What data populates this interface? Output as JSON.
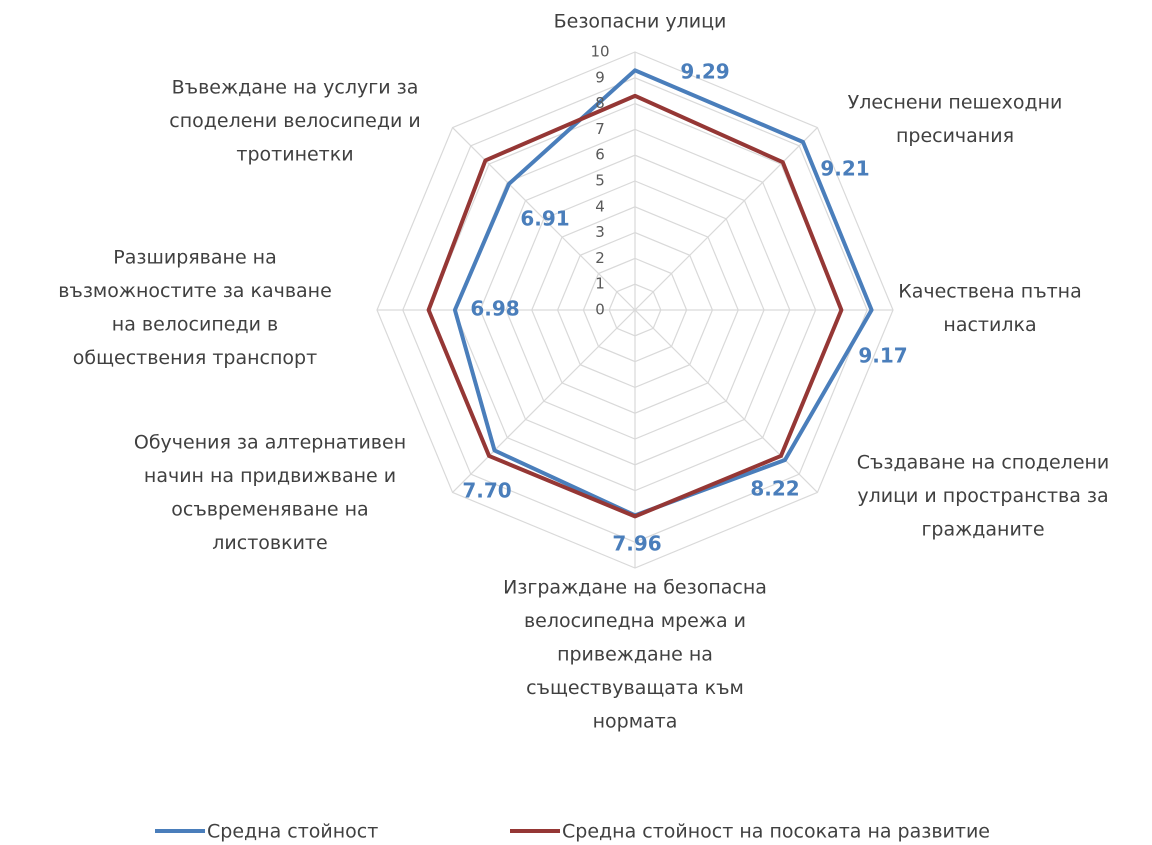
{
  "chart_data": {
    "type": "radar",
    "categories": [
      [
        "Безопасни улици"
      ],
      [
        "Улеснени пешеходни",
        "пресичания"
      ],
      [
        "Качествена пътна",
        "настилка"
      ],
      [
        "Създаване на споделени",
        "улици и пространства за",
        "гражданите"
      ],
      [
        "Изграждане на безопасна",
        "велосипедна мрежа и",
        "привеждане на",
        "съществуващата към",
        "нормата"
      ],
      [
        "Обучения за алтернативен",
        "начин на придвижване и",
        "осъвременяване на",
        "листовките"
      ],
      [
        "Разширяване на",
        "възможностите за качване",
        "на велосипеди в",
        "обществения транспорт"
      ],
      [
        "Въвеждане на услуги за",
        "споделени велосипеди и",
        "тротинетки"
      ]
    ],
    "series": [
      {
        "name": "Средна стойност",
        "color": "#4a7ebb",
        "values": [
          9.29,
          9.21,
          9.17,
          8.22,
          7.96,
          7.7,
          6.98,
          6.91
        ],
        "value_labels": [
          "9.29",
          "9.21",
          "9.17",
          "8.22",
          "7.96",
          "7.70",
          "6.98",
          "6.91"
        ]
      },
      {
        "name": "Средна стойност на посоката на развитие",
        "color": "#953735",
        "values": [
          8.3,
          8.1,
          8.0,
          8.0,
          8.0,
          8.0,
          8.0,
          8.2
        ]
      }
    ],
    "rlim": [
      0,
      10
    ],
    "rticks": [
      0,
      1,
      2,
      3,
      4,
      5,
      6,
      7,
      8,
      9,
      10
    ],
    "grid": true
  }
}
